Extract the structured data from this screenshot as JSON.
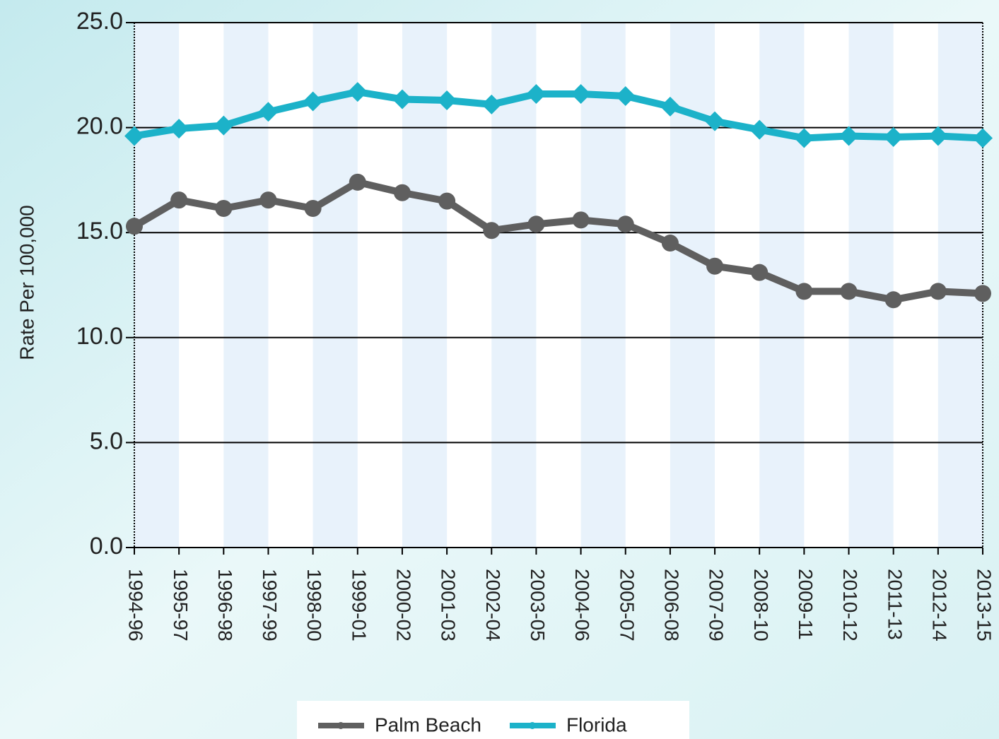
{
  "chart_data": {
    "type": "line",
    "y_label": "Rate Per 100,000",
    "categories": [
      "1994-96",
      "1995-97",
      "1996-98",
      "1997-99",
      "1998-00",
      "1999-01",
      "2000-02",
      "2001-03",
      "2002-04",
      "2003-05",
      "2004-06",
      "2005-07",
      "2006-08",
      "2007-09",
      "2008-10",
      "2009-11",
      "2010-12",
      "2011-13",
      "2012-14",
      "2013-15"
    ],
    "series": [
      {
        "name": "Palm Beach",
        "color": "#5f5f5f",
        "marker": "circle",
        "values": [
          15.3,
          16.55,
          16.15,
          16.55,
          16.15,
          17.4,
          16.9,
          16.5,
          15.1,
          15.4,
          15.6,
          15.4,
          14.5,
          13.4,
          13.1,
          12.2,
          12.2,
          11.8,
          12.2,
          12.1
        ]
      },
      {
        "name": "Florida",
        "color": "#1cb2c9",
        "marker": "diamond",
        "values": [
          19.6,
          19.95,
          20.1,
          20.75,
          21.25,
          21.7,
          21.35,
          21.3,
          21.1,
          21.6,
          21.6,
          21.5,
          21.0,
          20.3,
          19.9,
          19.5,
          19.6,
          19.55,
          19.6,
          19.5
        ]
      }
    ],
    "ylim": [
      0,
      25
    ],
    "yticks": [
      {
        "value": 0,
        "label": "0.0"
      },
      {
        "value": 5,
        "label": "5.0"
      },
      {
        "value": 10,
        "label": "10.0"
      },
      {
        "value": 15,
        "label": "15.0"
      },
      {
        "value": 20,
        "label": "20.0"
      },
      {
        "value": 25,
        "label": "25.0"
      }
    ],
    "grid": true,
    "legend": "bottom"
  }
}
